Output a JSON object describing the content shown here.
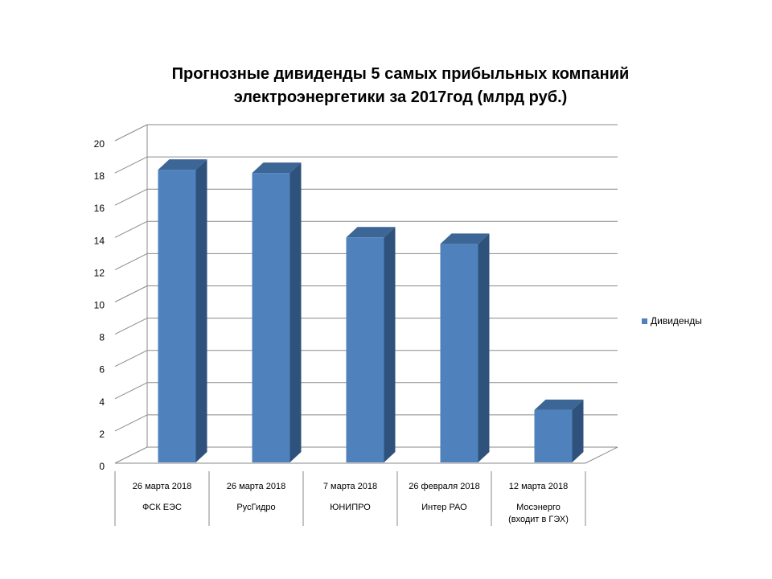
{
  "chart_data": {
    "type": "bar",
    "title_lines": [
      "Прогнозные дивиденды 5 самых прибыльных компаний",
      "электроэнергетики за 2017год (млрд руб.)"
    ],
    "categories": [
      {
        "date": "26 марта 2018",
        "name_lines": [
          "ФСК ЕЭС"
        ]
      },
      {
        "date": "26 марта 2018",
        "name_lines": [
          "РусГидро"
        ]
      },
      {
        "date": "7 марта 2018",
        "name_lines": [
          "ЮНИПРО"
        ]
      },
      {
        "date": "26 февраля 2018",
        "name_lines": [
          "Интер РАО"
        ]
      },
      {
        "date": "12 марта 2018",
        "name_lines": [
          "Мосэнерго",
          "(входит в ГЭХ)"
        ]
      }
    ],
    "series": [
      {
        "name": "Дивиденды",
        "values": [
          18.2,
          18.0,
          14.0,
          13.6,
          3.3
        ],
        "color": "#4f81bd"
      }
    ],
    "yticks": [
      "0",
      "2",
      "4",
      "6",
      "8",
      "10",
      "12",
      "14",
      "16",
      "18",
      "20"
    ],
    "ylim": [
      0,
      20
    ],
    "grid": true,
    "legend_position": "right",
    "three_d": true
  }
}
